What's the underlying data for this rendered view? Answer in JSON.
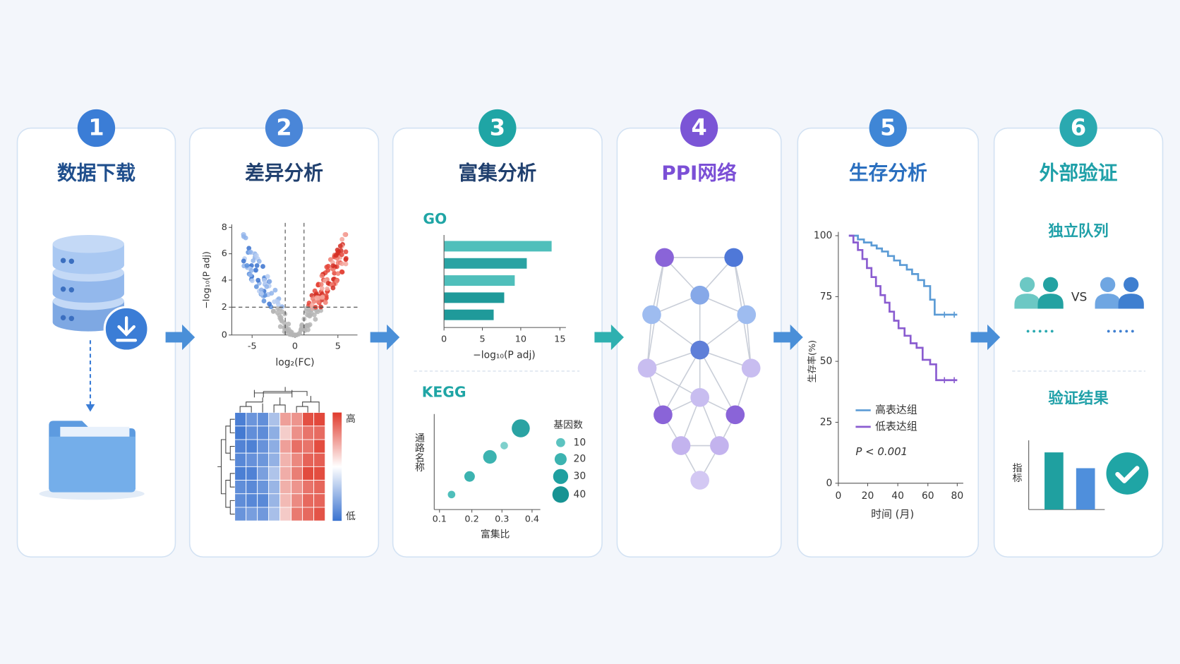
{
  "steps": [
    {
      "number": "1",
      "title": "数据下载"
    },
    {
      "number": "2",
      "title": "差异分析",
      "volcano": {
        "xlabel": "log₂(FC)",
        "ylabel": "−log₁₀(P adj)",
        "xticks": [
          "-5",
          "0",
          "5"
        ],
        "yticks": [
          "0",
          "2",
          "4",
          "6",
          "8"
        ]
      },
      "heatmap": {
        "high": "高",
        "low": "低"
      }
    },
    {
      "number": "3",
      "title": "富集分析",
      "go": {
        "label": "GO",
        "xticks": [
          "0",
          "5",
          "10",
          "15"
        ],
        "xlabel": "−log₁₀(P adj)"
      },
      "kegg": {
        "label": "KEGG",
        "ylabel": "通路名称",
        "xlabel": "富集比",
        "xticks": [
          "0.1",
          "0.2",
          "0.3",
          "0.4"
        ],
        "legend_title": "基因数",
        "legend": [
          "10",
          "20",
          "30",
          "40"
        ]
      }
    },
    {
      "number": "4",
      "title": "PPI网络"
    },
    {
      "number": "5",
      "title": "生存分析",
      "xticks": [
        "0",
        "20",
        "40",
        "60",
        "80"
      ],
      "yticks": [
        "0",
        "25",
        "50",
        "75",
        "100"
      ],
      "xlabel": "时间 (月)",
      "ylabel": "生存率(%)",
      "legend": [
        "高表达组",
        "低表达组"
      ],
      "pvalue": "P < 0.001"
    },
    {
      "number": "6",
      "title": "外部验证",
      "cohort": "独立队列",
      "vs": "VS",
      "result": "验证结果",
      "ylabel": "指标"
    }
  ]
}
